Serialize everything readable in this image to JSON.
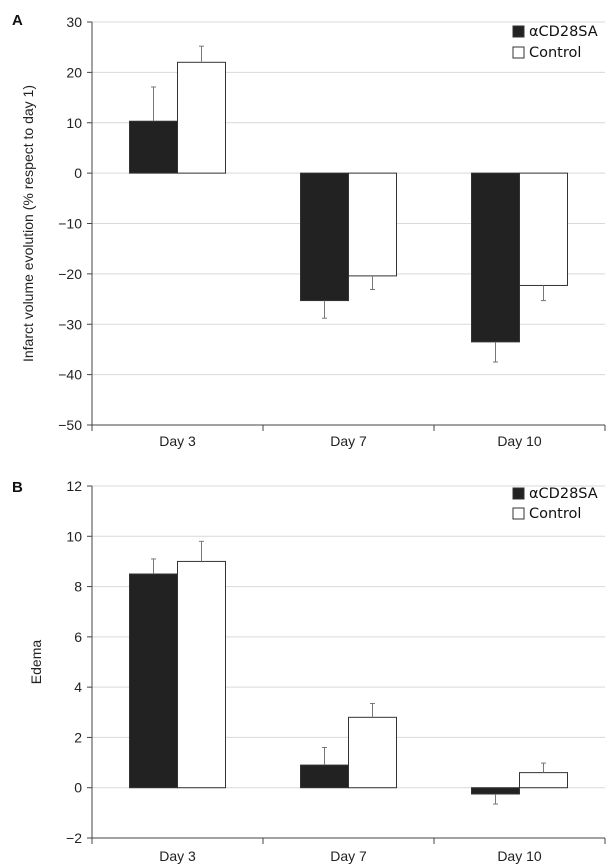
{
  "chart_data": [
    {
      "panel": "A",
      "type": "bar",
      "categories": [
        "Day 3",
        "Day 7",
        "Day 10"
      ],
      "ylabel": "Infarct volume evolution (% respect to day 1)",
      "ylim": [
        -50,
        30
      ],
      "yticks": [
        30,
        20,
        10,
        0,
        -10,
        -20,
        -30,
        -40,
        -50
      ],
      "ytick_labels": [
        "30",
        "20",
        "10",
        "0",
        "−10",
        "−20",
        "−30",
        "−40",
        "−50"
      ],
      "grid": true,
      "legend_position": "top-right",
      "series": [
        {
          "name": "αCD28SA",
          "color": "#222222",
          "values": [
            10.3,
            -25.3,
            -33.5
          ],
          "errors": [
            6.8,
            3.5,
            4.0
          ]
        },
        {
          "name": "Control",
          "color": "#ffffff",
          "values": [
            22.0,
            -20.4,
            -22.3
          ],
          "errors": [
            3.2,
            2.7,
            3.0
          ]
        }
      ]
    },
    {
      "panel": "B",
      "type": "bar",
      "categories": [
        "Day 3",
        "Day 7",
        "Day 10"
      ],
      "ylabel": "Edema",
      "ylim": [
        -2,
        12
      ],
      "yticks": [
        12,
        10,
        8,
        6,
        4,
        2,
        0,
        -2
      ],
      "ytick_labels": [
        "12",
        "10",
        "8",
        "6",
        "4",
        "2",
        "0",
        "−2"
      ],
      "grid": true,
      "legend_position": "top-right",
      "series": [
        {
          "name": "αCD28SA",
          "color": "#222222",
          "values": [
            8.5,
            0.9,
            -0.25
          ],
          "errors": [
            0.6,
            0.7,
            0.4
          ]
        },
        {
          "name": "Control",
          "color": "#ffffff",
          "values": [
            9.0,
            2.8,
            0.6
          ],
          "errors": [
            0.8,
            0.55,
            0.38
          ]
        }
      ]
    }
  ]
}
